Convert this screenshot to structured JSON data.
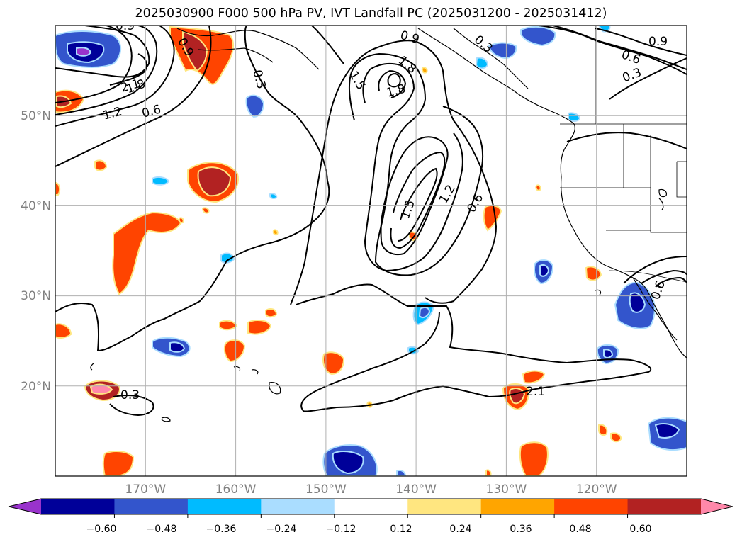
{
  "title": "2025030900 F000 500 hPa PV, IVT Landfall PC (2025031200 - 2025031412)",
  "map": {
    "lon_range": [
      -180,
      -110
    ],
    "lat_range": [
      10,
      60
    ],
    "lat_ticks": [
      {
        "lat": 50,
        "label": "50°N"
      },
      {
        "lat": 40,
        "label": "40°N"
      },
      {
        "lat": 30,
        "label": "30°N"
      },
      {
        "lat": 20,
        "label": "20°N"
      }
    ],
    "lon_ticks": [
      {
        "lon": -170,
        "label": "170°W"
      },
      {
        "lon": -160,
        "label": "160°W"
      },
      {
        "lon": -150,
        "label": "150°W"
      },
      {
        "lon": -140,
        "label": "140°W"
      },
      {
        "lon": -130,
        "label": "130°W"
      },
      {
        "lon": -120,
        "label": "120°W"
      }
    ],
    "gridlines": true,
    "contour_labels": [
      "0.9",
      "0.9",
      "0.9",
      "0.9",
      "0.6",
      "0.6",
      "0.6",
      "0.6",
      "0.3",
      "0.3",
      "0.3",
      "0.3",
      "2.1",
      "2.1",
      "1.8",
      "1.8",
      "1.8",
      "1.5",
      "1.5",
      "1.2",
      "1.2"
    ]
  },
  "colorbar": {
    "colors": [
      "#9933CC",
      "#000099",
      "#3355CC",
      "#00BBFF",
      "#AADDFF",
      "#FFFFFF",
      "#FFE680",
      "#FFA500",
      "#FF4400",
      "#B22222",
      "#FF88AA"
    ],
    "tick_labels": [
      "−0.60",
      "−0.48",
      "−0.36",
      "−0.24",
      "−0.12",
      "0.12",
      "0.24",
      "0.36",
      "0.48",
      "0.60"
    ],
    "extend": "both"
  }
}
